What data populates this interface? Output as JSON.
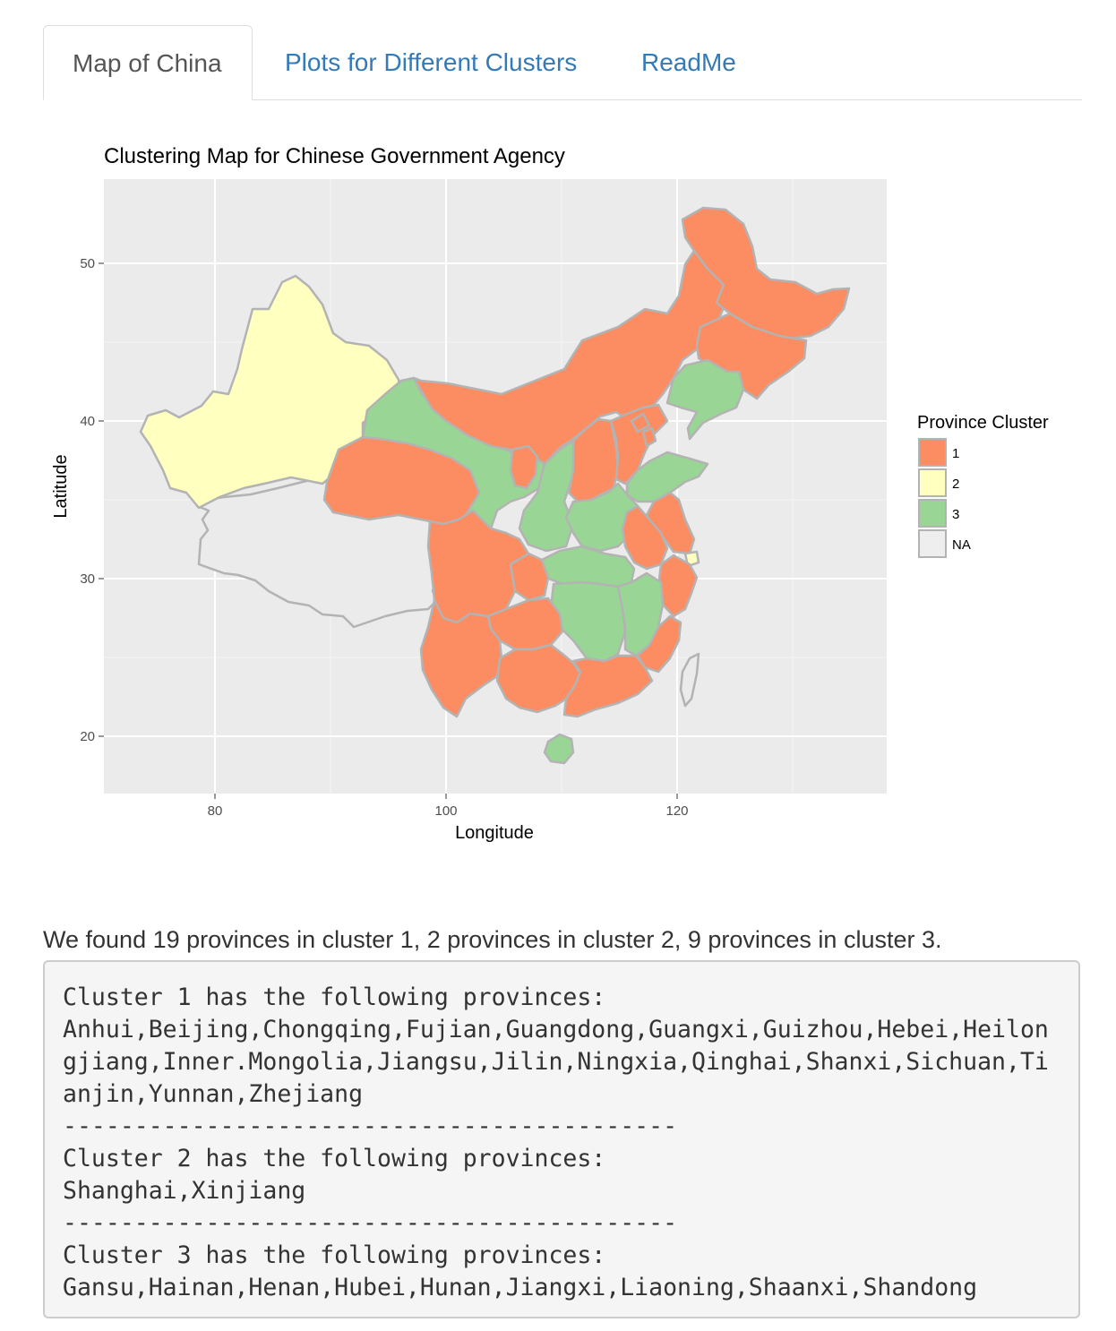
{
  "tabs": [
    {
      "label": "Map of China",
      "active": true
    },
    {
      "label": "Plots for Different Clusters",
      "active": false
    },
    {
      "label": "ReadMe",
      "active": false
    }
  ],
  "map": {
    "title": "Clustering Map for Chinese Government Agency",
    "x_label": "Longitude",
    "y_label": "Latitude",
    "x_ticks": [
      "80",
      "100",
      "120"
    ],
    "y_ticks": [
      "50",
      "40",
      "30",
      "20"
    ],
    "legend": {
      "title": "Province Cluster",
      "items": [
        {
          "label": "1",
          "color": "#fc8d62"
        },
        {
          "label": "2",
          "color": "#ffffbf"
        },
        {
          "label": "3",
          "color": "#99d594"
        },
        {
          "label": "NA",
          "color": "#eeeeee"
        }
      ]
    },
    "colors": {
      "panel": "#ebebeb",
      "grid": "#ffffff",
      "border": "#b3b3b3",
      "cluster1": "#fc8d62",
      "cluster2": "#ffffbf",
      "cluster3": "#99d594"
    }
  },
  "summary": "We found 19 provinces in cluster 1, 2 provinces in cluster 2, 9 provinces in cluster 3.",
  "output_lines": [
    "Cluster 1 has the following provinces:",
    "Anhui,Beijing,Chongqing,Fujian,Guangdong,Guangxi,Guizhou,Hebei,Heilon",
    "gjiang,Inner.Mongolia,Jiangsu,Jilin,Ningxia,Qinghai,Shanxi,Sichuan,Ti",
    "anjin,Yunnan,Zhejiang",
    "-------------------------------------------",
    "Cluster 2 has the following provinces:",
    "Shanghai,Xinjiang",
    "-------------------------------------------",
    "Cluster 3 has the following provinces:",
    "Gansu,Hainan,Henan,Hubei,Hunan,Jiangxi,Liaoning,Shaanxi,Shandong"
  ]
}
